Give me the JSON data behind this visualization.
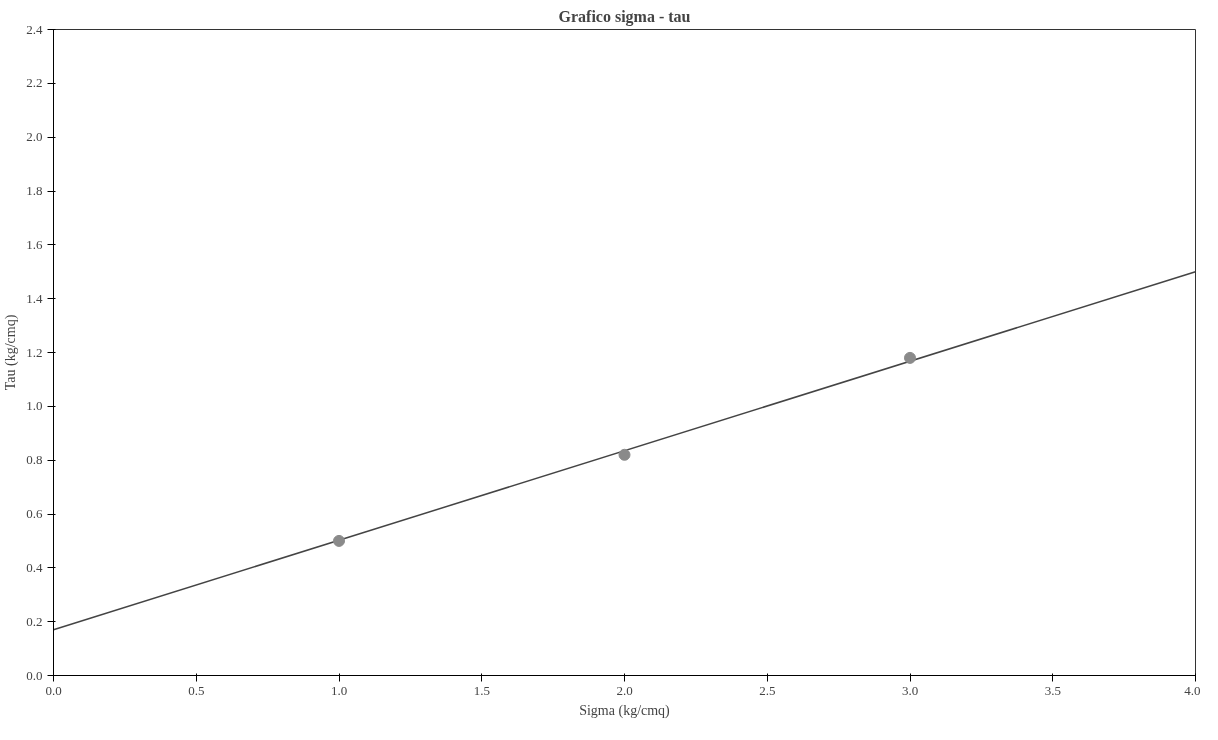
{
  "chart_data": {
    "type": "scatter",
    "title": "Grafico sigma - tau",
    "xlabel": "Sigma (kg/cmq)",
    "ylabel": "Tau (kg/cmq)",
    "xlim": [
      0,
      4
    ],
    "ylim": [
      0,
      2.4
    ],
    "xticks": [
      {
        "value": 0,
        "label": "0.0"
      },
      0.5,
      {
        "value": 1,
        "label": "1.0"
      },
      1.5,
      {
        "value": 2,
        "label": "2.0"
      },
      2.5,
      {
        "value": 3,
        "label": "3.0"
      },
      3.5,
      {
        "value": 4,
        "label": "4.0"
      }
    ],
    "yticks": [
      {
        "value": 0,
        "label": "0.0"
      },
      0.2,
      0.4,
      0.6,
      0.8,
      {
        "value": 1,
        "label": "1.0"
      },
      1.2,
      1.4,
      1.6,
      1.8,
      {
        "value": 2,
        "label": "2.0"
      },
      2.2,
      2.4
    ],
    "grid": false,
    "marker": "circle",
    "series": [
      {
        "type": "line",
        "color": "#444444",
        "x": [
          0,
          4
        ],
        "values": [
          0.17,
          1.5
        ],
        "marker": "none",
        "line_style": "solid"
      },
      {
        "color": "#8a8a8a",
        "x": [
          1,
          2,
          3
        ],
        "values": [
          0.5,
          0.82,
          1.18
        ]
      }
    ]
  }
}
